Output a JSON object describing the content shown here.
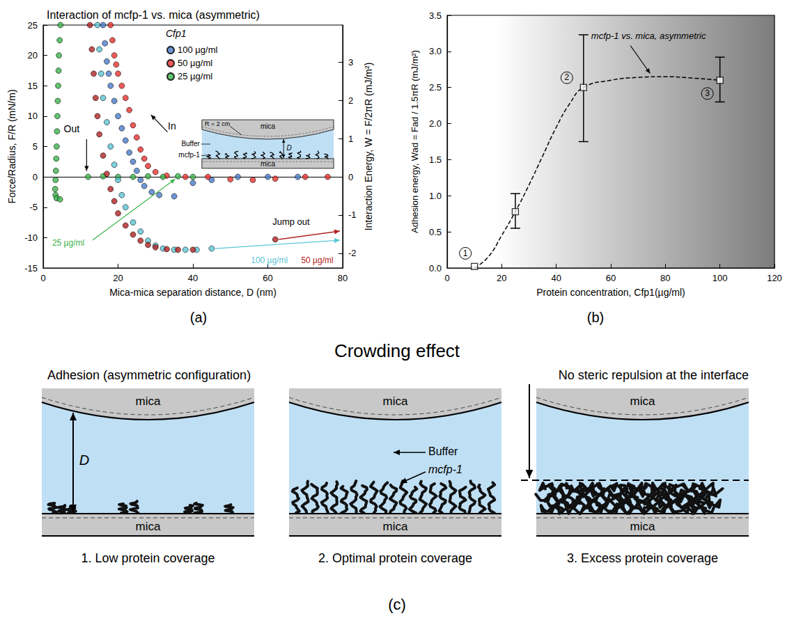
{
  "chart_data": [
    {
      "type": "scatter",
      "panel": "(a)",
      "title": "Interaction of mcfp-1 vs. mica (asymmetric)",
      "x_label": "Mica-mica separation distance, D (nm)",
      "y_label": "Force/Radius, F/R (mN/m)",
      "y2_label": "Interaction Energy, W = F/2πR (mJ/m²)",
      "xlim": [
        0,
        80
      ],
      "xticks": [
        0,
        20,
        40,
        60,
        80
      ],
      "ylim": [
        -15,
        25
      ],
      "yticks": [
        -15,
        -10,
        -5,
        0,
        5,
        10,
        15,
        20,
        25
      ],
      "y2lim": [
        -2.387,
        3.979
      ],
      "y2ticks": [
        -2,
        -1,
        0,
        1,
        2,
        3
      ],
      "grid": false,
      "legend": "upper center",
      "legend_title": "Cfp1",
      "series": [
        {
          "name": "100 µg/ml",
          "color": "#4a7cc9",
          "marker": "circle",
          "x": [
            16,
            16.5,
            17,
            17.5,
            18,
            19,
            20,
            21,
            22,
            23,
            24,
            25,
            26,
            27,
            29,
            31,
            35,
            40,
            45,
            52,
            60,
            68
          ],
          "values": [
            25,
            22,
            19,
            17,
            15,
            12.5,
            10,
            8,
            6,
            4,
            2.5,
            1,
            -0.5,
            -1.5,
            -2.5,
            -3,
            -3.2,
            -1,
            -0.5,
            0,
            0,
            0
          ]
        },
        {
          "name": "50 µg/ml",
          "color": "#e8322e",
          "marker": "circle",
          "x": [
            18,
            18.5,
            19,
            19.5,
            20,
            21,
            22,
            23,
            24,
            25,
            26,
            27,
            28,
            30,
            33,
            38,
            44,
            50,
            56,
            62,
            70,
            76
          ],
          "values": [
            25,
            22.5,
            20,
            18.5,
            17,
            15,
            13,
            11,
            8.5,
            6.5,
            4.5,
            3,
            1.8,
            0.8,
            0.2,
            0,
            0,
            -0.4,
            -0.5,
            -0.3,
            0,
            0
          ]
        },
        {
          "name": "25 µg/ml",
          "color": "#3cb44b",
          "marker": "circle",
          "x": [
            4.6,
            4.4,
            4.2,
            4.1,
            4.0,
            3.9,
            3.8,
            3.7,
            3.6,
            3.5,
            3.4,
            3.3,
            3.2,
            3.3,
            3.6,
            4.5,
            12,
            16,
            20,
            24,
            28,
            32,
            36,
            40
          ],
          "values": [
            25,
            22.5,
            20,
            17.5,
            15,
            12.5,
            10,
            7.5,
            5,
            3,
            1,
            -0.5,
            -2,
            -3,
            -3.5,
            -3.7,
            0,
            0.1,
            0,
            0,
            0.1,
            0,
            0.1,
            0
          ]
        },
        {
          "name": "100 µg/ml",
          "color": "#5cc6d6",
          "marker": "circle",
          "x": [
            14.5,
            15,
            15.5,
            16,
            17,
            18,
            19,
            20,
            21,
            22,
            24,
            26,
            28,
            30,
            32,
            35,
            38,
            41,
            45
          ],
          "values": [
            25,
            21,
            17,
            13,
            9,
            5,
            2,
            -0.5,
            -3,
            -5,
            -7.5,
            -9,
            -10.5,
            -11.3,
            -11.8,
            -12,
            -12,
            -12,
            -11.8
          ]
        },
        {
          "name": "50 µg/ml",
          "color": "#b22222",
          "marker": "circle",
          "x": [
            12.5,
            13,
            13.5,
            14,
            14.5,
            15,
            16,
            17,
            18,
            19,
            20,
            22,
            24,
            26,
            28,
            30,
            33,
            36,
            40,
            62
          ],
          "values": [
            25,
            21,
            17,
            13,
            10,
            7,
            3.5,
            0.5,
            -2,
            -4,
            -6,
            -8,
            -9.5,
            -10.5,
            -11.2,
            -11.6,
            -11.9,
            -12,
            -12,
            -10.3
          ]
        }
      ],
      "annotations": {
        "approach": "In",
        "retraction": "Out",
        "jump": "Jump out",
        "inset": {
          "radius": "R = 2 cm",
          "top": "mica",
          "medium": "Buffer",
          "protein": "mcfp-1",
          "gap": "D",
          "bottom": "mica"
        }
      }
    },
    {
      "type": "scatter",
      "panel": "(b)",
      "x_label": "Protein concentration, Cfp1(µg/ml)",
      "y_label": "Adhesion energy, Wad = Fad / 1.5πR (mJ/m²)",
      "xlim": [
        0,
        120
      ],
      "xticks": [
        0,
        20,
        40,
        60,
        80,
        100,
        120
      ],
      "ylim": [
        0,
        3.5
      ],
      "yticks": [
        {
          "value": 0,
          "label": "0.0"
        },
        0.5,
        {
          "value": 1,
          "label": "1.0"
        },
        1.5,
        {
          "value": 2,
          "label": "2.0"
        },
        2.5,
        {
          "value": 3,
          "label": "3.0"
        },
        3.5
      ],
      "grid": false,
      "series": [
        {
          "type": "scatter",
          "marker": "square",
          "color": "#000000",
          "x": [
            10,
            25,
            50,
            100
          ],
          "values": [
            0.02,
            0.78,
            2.5,
            2.6
          ],
          "error_low": [
            null,
            0.55,
            1.75,
            2.3
          ],
          "error_high": [
            null,
            1.03,
            3.23,
            2.92
          ],
          "point_labels": [
            "1",
            null,
            "2",
            "3"
          ]
        },
        {
          "type": "line",
          "line_style": "dashed",
          "color": "#000000",
          "x": [
            10,
            15,
            20,
            25,
            30,
            35,
            40,
            45,
            50,
            60,
            70,
            80,
            90,
            100
          ],
          "values": [
            0,
            0.15,
            0.45,
            0.78,
            1.15,
            1.55,
            1.95,
            2.28,
            2.5,
            2.6,
            2.64,
            2.65,
            2.63,
            2.6
          ]
        }
      ],
      "annotations": [
        "mcfp-1 vs. mica, asymmetric"
      ]
    }
  ],
  "diagram": {
    "panel": "(c)",
    "title": "Crowding effect",
    "heads": {
      "left": "Adhesion (asymmetric configuration)",
      "right": "No steric repulsion at the interface"
    },
    "panels": [
      {
        "top": "mica",
        "bottom": "mica",
        "labels": {
          "gap": "D"
        },
        "caption": "1. Low protein coverage"
      },
      {
        "top": "mica",
        "bottom": "mica",
        "labels": {
          "medium": "Buffer",
          "protein": "mcfp-1"
        },
        "caption": "2. Optimal protein coverage"
      },
      {
        "top": "mica",
        "bottom": "mica",
        "caption": "3. Excess protein coverage"
      }
    ]
  }
}
